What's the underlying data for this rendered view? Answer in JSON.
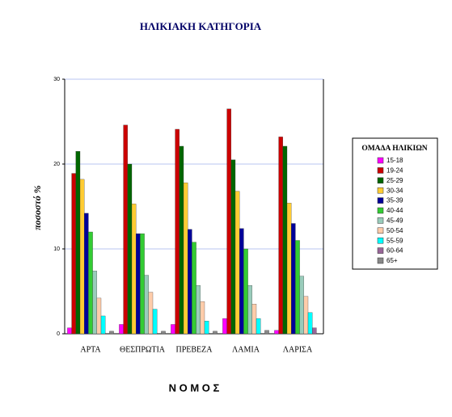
{
  "chart_data": {
    "type": "bar",
    "title": "ΗΛΙΚΙΑΚΗ ΚΑΤΗΓΟΡΙΑ",
    "y_label": "ποσοστό %",
    "x_label": "Ν Ο Μ Ο Σ",
    "legend_title": "ΟΜΑΔΑ ΗΛΙΚΙΩΝ",
    "legend_position": "right",
    "grid": true,
    "categories": [
      "ΑΡΤΑ",
      "ΘΕΣΠΡΩΤΙΑ",
      "ΠΡΕΒΕΖΑ",
      "ΛΑΜΙΑ",
      "ΛΑΡΙΣΑ"
    ],
    "ylim": [
      0,
      30
    ],
    "yticks": [
      0,
      10,
      20,
      30
    ],
    "series": [
      {
        "name": "15-18",
        "color": "#ff00ff",
        "values": [
          0.7,
          1.1,
          1.1,
          1.8,
          0.4
        ]
      },
      {
        "name": "19-24",
        "color": "#cc0000",
        "values": [
          18.9,
          24.6,
          24.1,
          26.5,
          23.2
        ]
      },
      {
        "name": "25-29",
        "color": "#006600",
        "values": [
          21.5,
          20.0,
          22.1,
          20.5,
          22.1
        ]
      },
      {
        "name": "30-34",
        "color": "#ffcc33",
        "values": [
          18.2,
          15.3,
          17.8,
          16.8,
          15.4
        ]
      },
      {
        "name": "35-39",
        "color": "#000099",
        "values": [
          14.2,
          11.8,
          12.3,
          12.4,
          13.0
        ]
      },
      {
        "name": "40-44",
        "color": "#33cc33",
        "values": [
          12.0,
          11.8,
          10.8,
          10.0,
          11.0
        ]
      },
      {
        "name": "45-49",
        "color": "#99ccbb",
        "values": [
          7.4,
          6.9,
          5.7,
          5.7,
          6.8
        ]
      },
      {
        "name": "50-54",
        "color": "#ffccaa",
        "values": [
          4.2,
          4.9,
          3.8,
          3.5,
          4.4
        ]
      },
      {
        "name": "55-59",
        "color": "#00ffff",
        "values": [
          2.1,
          2.9,
          1.5,
          1.8,
          2.5
        ]
      },
      {
        "name": "60-64",
        "color": "#996699",
        "values": [
          0,
          0,
          0,
          0,
          0.7
        ]
      },
      {
        "name": "65+",
        "color": "#888888",
        "values": [
          0.3,
          0.3,
          0.3,
          0.4,
          0
        ]
      }
    ]
  }
}
